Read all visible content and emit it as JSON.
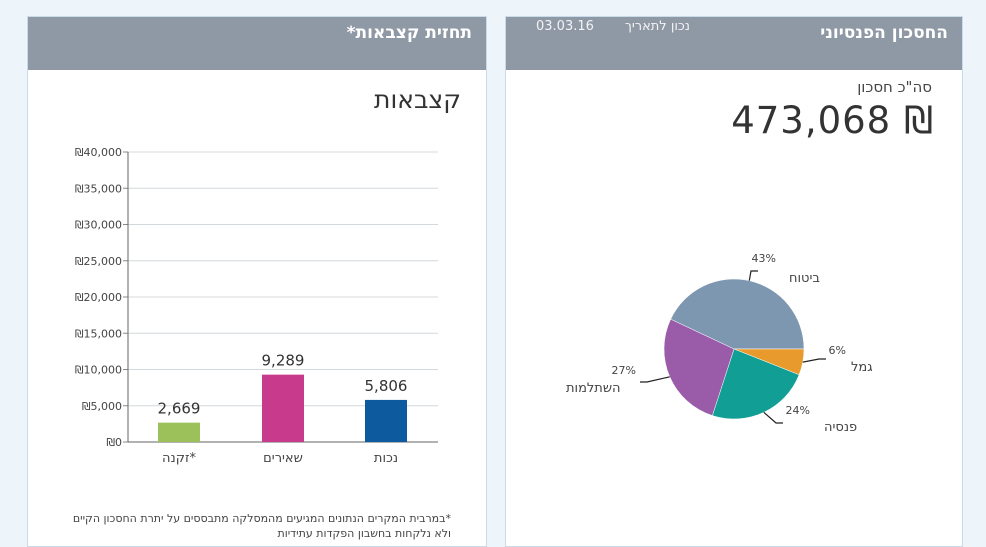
{
  "retirement_panel": {
    "title": "תחזית קצבאות*",
    "chart_heading": "קצבאות",
    "footnote_line1": "*במרבית המקרים הנתונים המגיעים מהמסלקה מתבססים על יתרת החסכון הקיים",
    "footnote_line2": "ולא נלקחות בחשבון הפקדות עתידיות"
  },
  "savings_panel": {
    "title": "החסכון הפנסיוני",
    "date_label": "נכון לתאריך",
    "date_value": "03.03.16",
    "total_label": "סה\"כ חסכון",
    "total_value": "473,068 ₪"
  },
  "colors": {
    "header_bg": "#8f98a5",
    "bar_zikna": "#9cc05a",
    "bar_shearim": "#c83a8c",
    "bar_nechut": "#0d5a9e",
    "slice_bituach": "#7e97b0",
    "slice_gemel": "#e99a2c",
    "slice_pensia": "#119f95",
    "slice_hishtalmut": "#9a5ba8"
  },
  "chart_data": [
    {
      "type": "bar",
      "categories": [
        "*זקנה",
        "שאירים",
        "נכות"
      ],
      "values": [
        2669,
        9289,
        5806
      ],
      "value_labels": [
        "2,669",
        "9,289",
        "5,806"
      ],
      "ylim": [
        0,
        40000
      ],
      "yticks": [
        0,
        5000,
        10000,
        15000,
        20000,
        25000,
        30000,
        35000,
        40000
      ],
      "ytick_labels": [
        "₪0",
        "₪5,000",
        "₪10,000",
        "₪15,000",
        "₪20,000",
        "₪25,000",
        "₪30,000",
        "₪35,000",
        "₪40,000"
      ],
      "grid": true
    },
    {
      "type": "pie",
      "slices": [
        {
          "name": "ביטוח",
          "value": 43,
          "label": "43%"
        },
        {
          "name": "גמל",
          "value": 6,
          "label": "6%"
        },
        {
          "name": "פנסיה",
          "value": 24,
          "label": "24%"
        },
        {
          "name": "השתלמות",
          "value": 27,
          "label": "27%"
        }
      ]
    }
  ]
}
